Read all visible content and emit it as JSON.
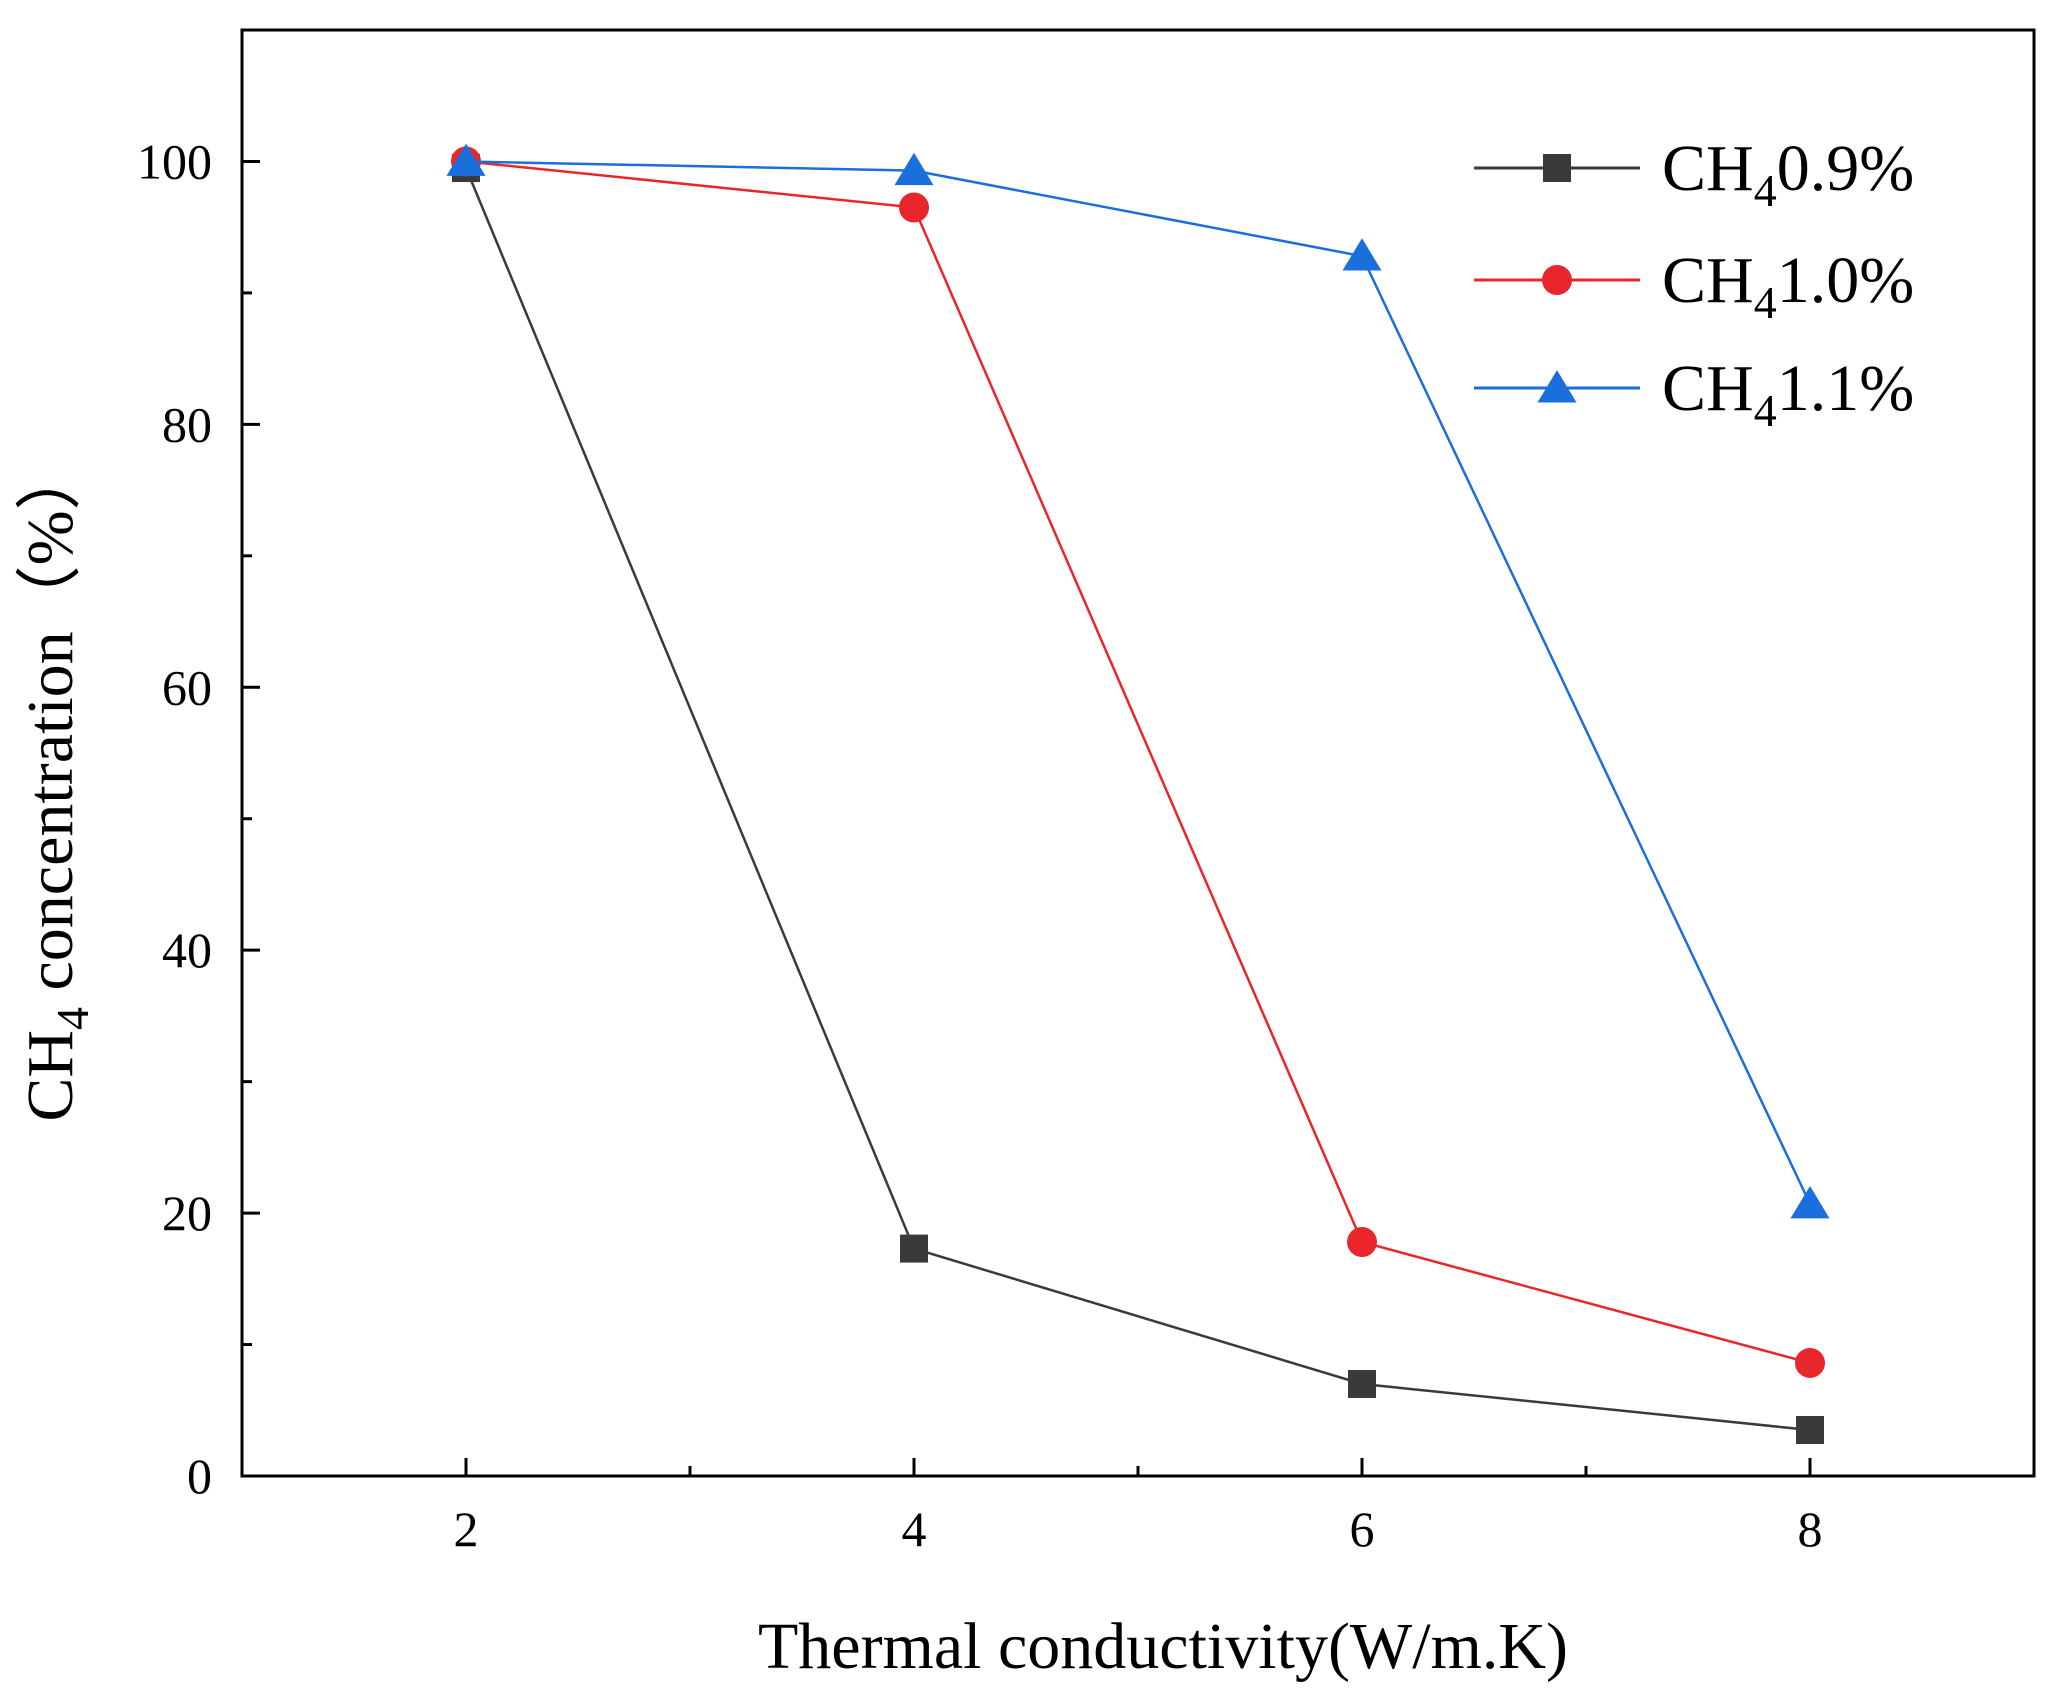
{
  "chart_data": {
    "type": "line",
    "title": "",
    "xlabel": "Thermal conductivity(W/m.K)",
    "ylabel": {
      "prefix": "CH",
      "subscript": "4",
      "suffix": " concentration（%）"
    },
    "x": [
      2,
      4,
      6,
      8
    ],
    "xlim": [
      1,
      9
    ],
    "ylim": [
      0,
      110
    ],
    "xticks": [
      2,
      4,
      6,
      8
    ],
    "xminor": [
      3,
      5,
      7
    ],
    "yticks": [
      0,
      20,
      40,
      60,
      80,
      100
    ],
    "yminor": [
      10,
      30,
      50,
      70,
      90
    ],
    "grid": false,
    "legend_position": "top-right",
    "series": [
      {
        "name_prefix": "CH",
        "name_subscript": "4",
        "name_suffix": "0.9%",
        "color": "#3a3a3a",
        "marker": "square",
        "values": [
          99.5,
          17.3,
          7.0,
          3.5
        ]
      },
      {
        "name_prefix": "CH",
        "name_subscript": "4",
        "name_suffix": "1.0%",
        "color": "#e8262b",
        "marker": "circle",
        "values": [
          100.0,
          96.5,
          17.8,
          8.6
        ]
      },
      {
        "name_prefix": "CH",
        "name_subscript": "4",
        "name_suffix": "1.1%",
        "color": "#1a6fdc",
        "marker": "triangle",
        "values": [
          100.0,
          99.3,
          92.8,
          20.7
        ]
      }
    ]
  }
}
